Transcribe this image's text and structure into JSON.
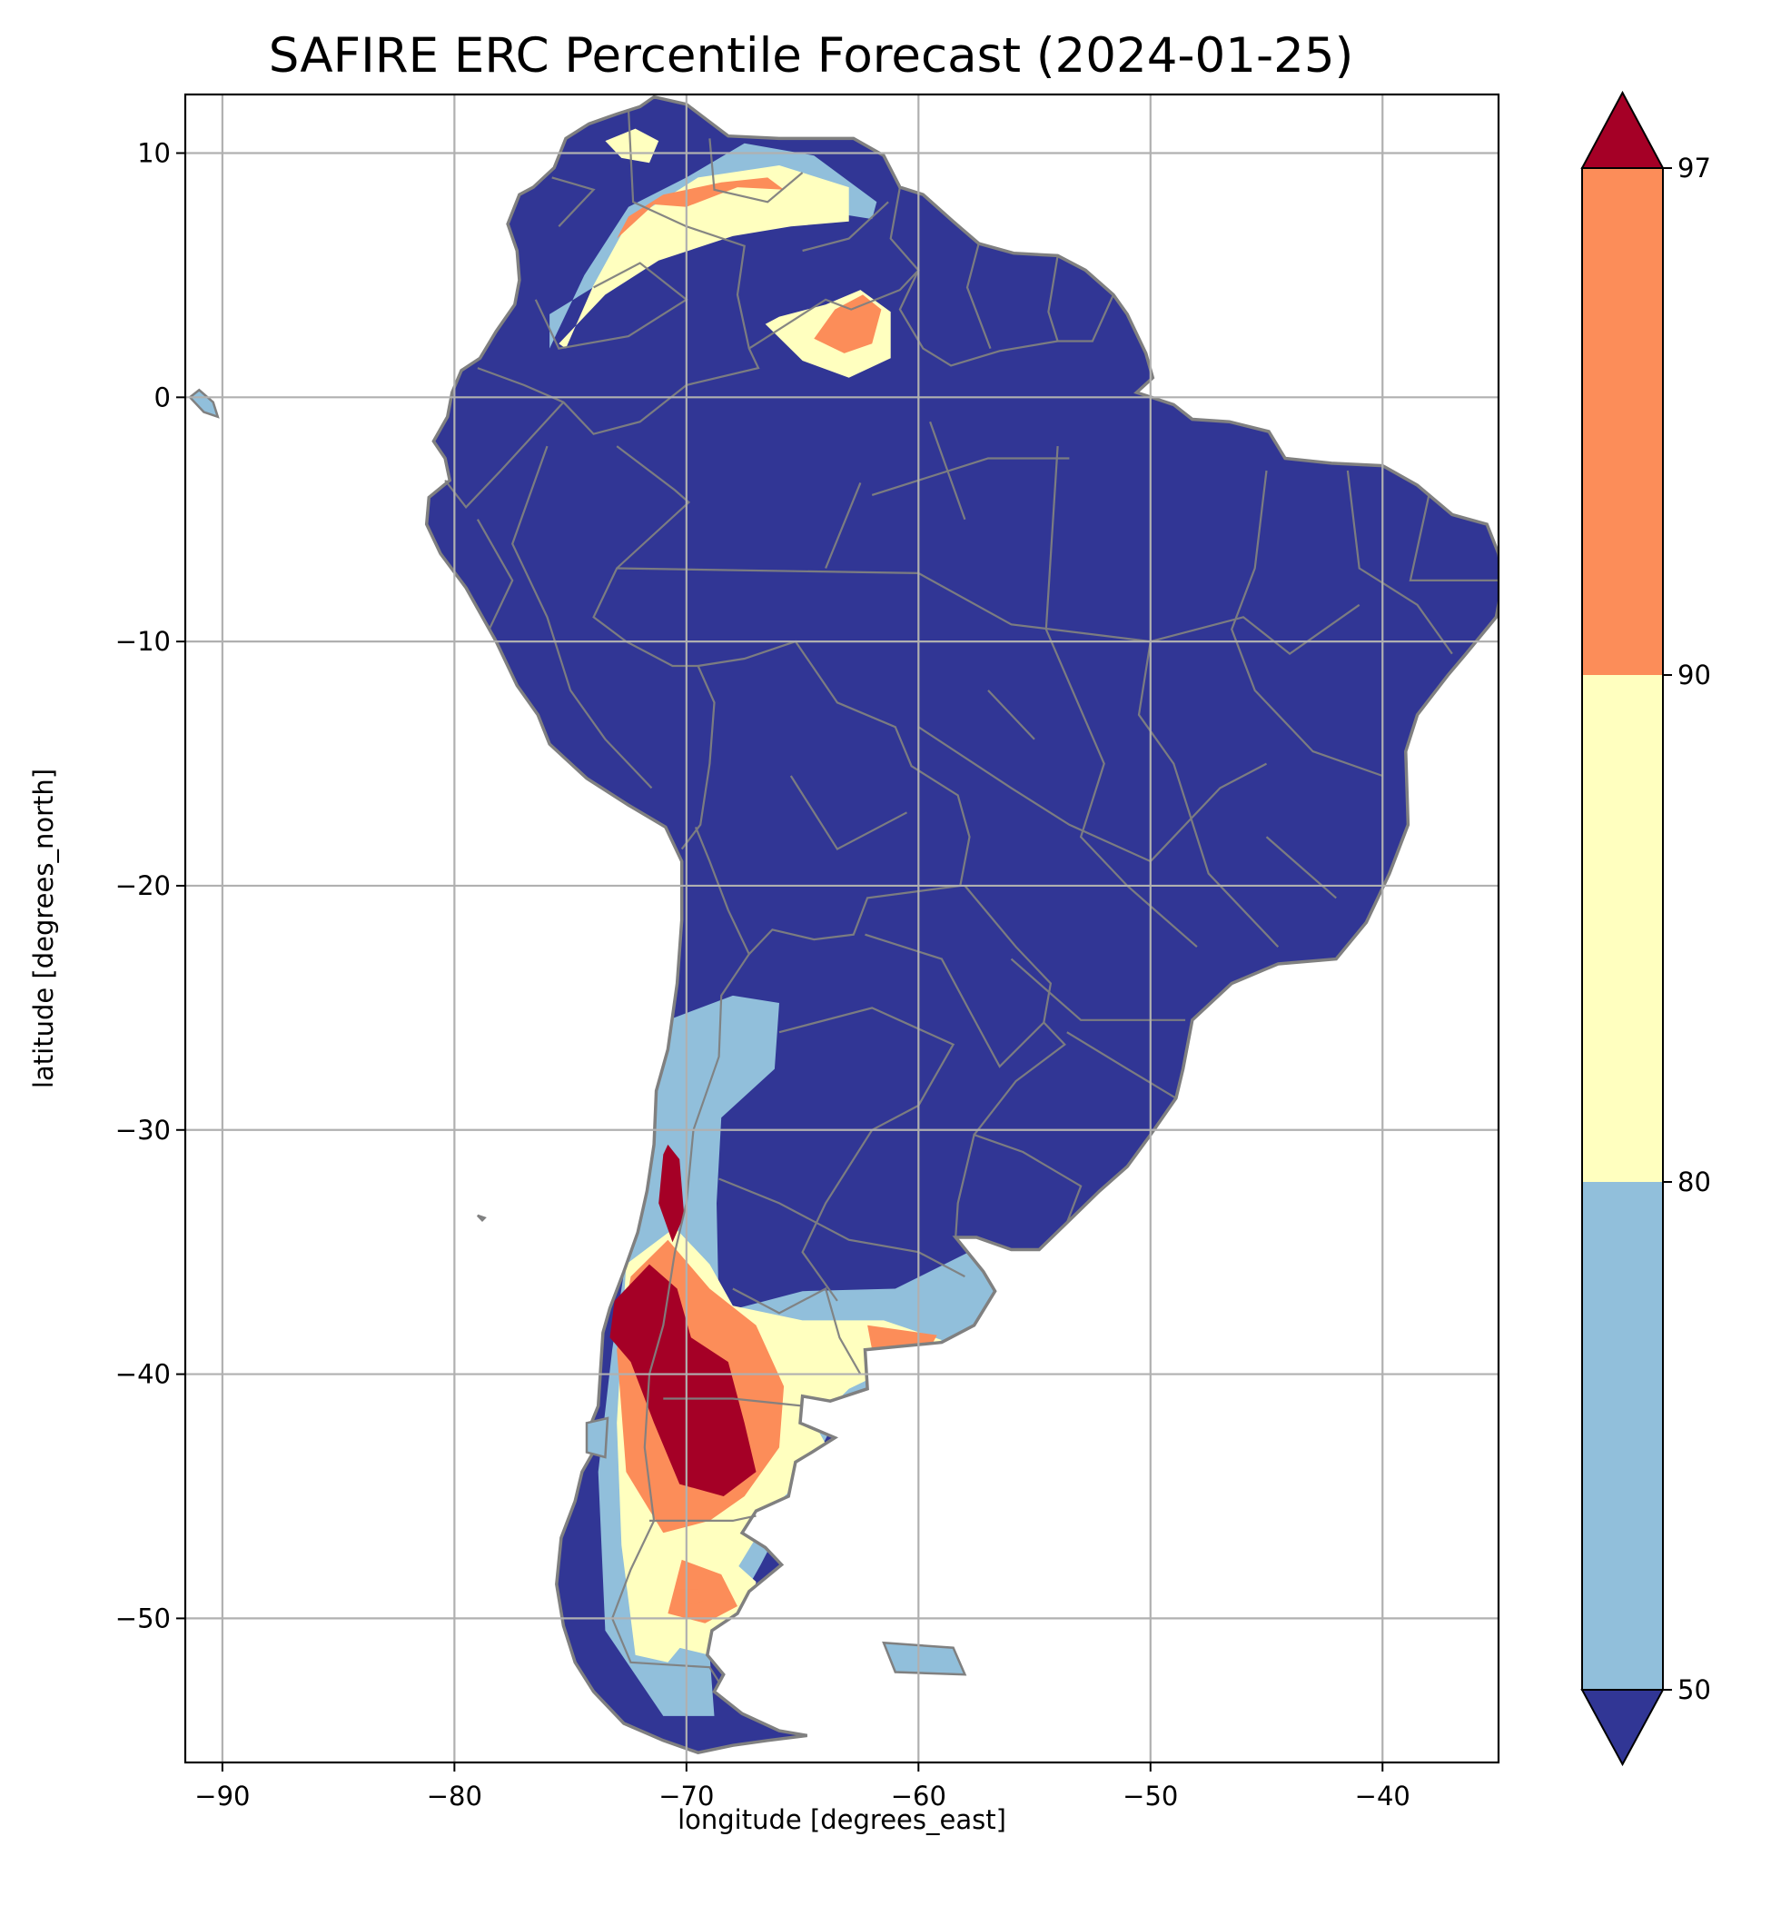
{
  "title": "SAFIRE ERC Percentile Forecast (2024-01-25)",
  "xlabel": "longitude [degrees_east]",
  "ylabel": "latitude [degrees_north]",
  "map": {
    "projection": "plate-carree",
    "xlim": [
      -91.6,
      -35.0
    ],
    "ylim": [
      -55.9,
      12.4
    ],
    "x_ticks": [
      -90,
      -80,
      -70,
      -60,
      -50,
      -40
    ],
    "x_tick_labels": [
      "−90",
      "−80",
      "−70",
      "−60",
      "−50",
      "−40"
    ],
    "y_ticks": [
      10,
      0,
      -10,
      -20,
      -30,
      -40,
      -50
    ],
    "y_tick_labels": [
      "10",
      "0",
      "−10",
      "−20",
      "−30",
      "−40",
      "−50"
    ],
    "grid": true,
    "ocean_color": "#ffffff",
    "boundary_color": "#808080",
    "region": "South America"
  },
  "colorbar": {
    "extend": "both",
    "ticks": [
      "50",
      "80",
      "90",
      "97"
    ],
    "bins": [
      {
        "label": "<50",
        "color": "#313695"
      },
      {
        "label": "50-80",
        "color": "#91bfdb"
      },
      {
        "label": "80-90",
        "color": "#ffffbf"
      },
      {
        "label": "90-97",
        "color": "#fc8d59"
      },
      {
        "label": ">97",
        "color": "#a50026"
      }
    ]
  }
}
